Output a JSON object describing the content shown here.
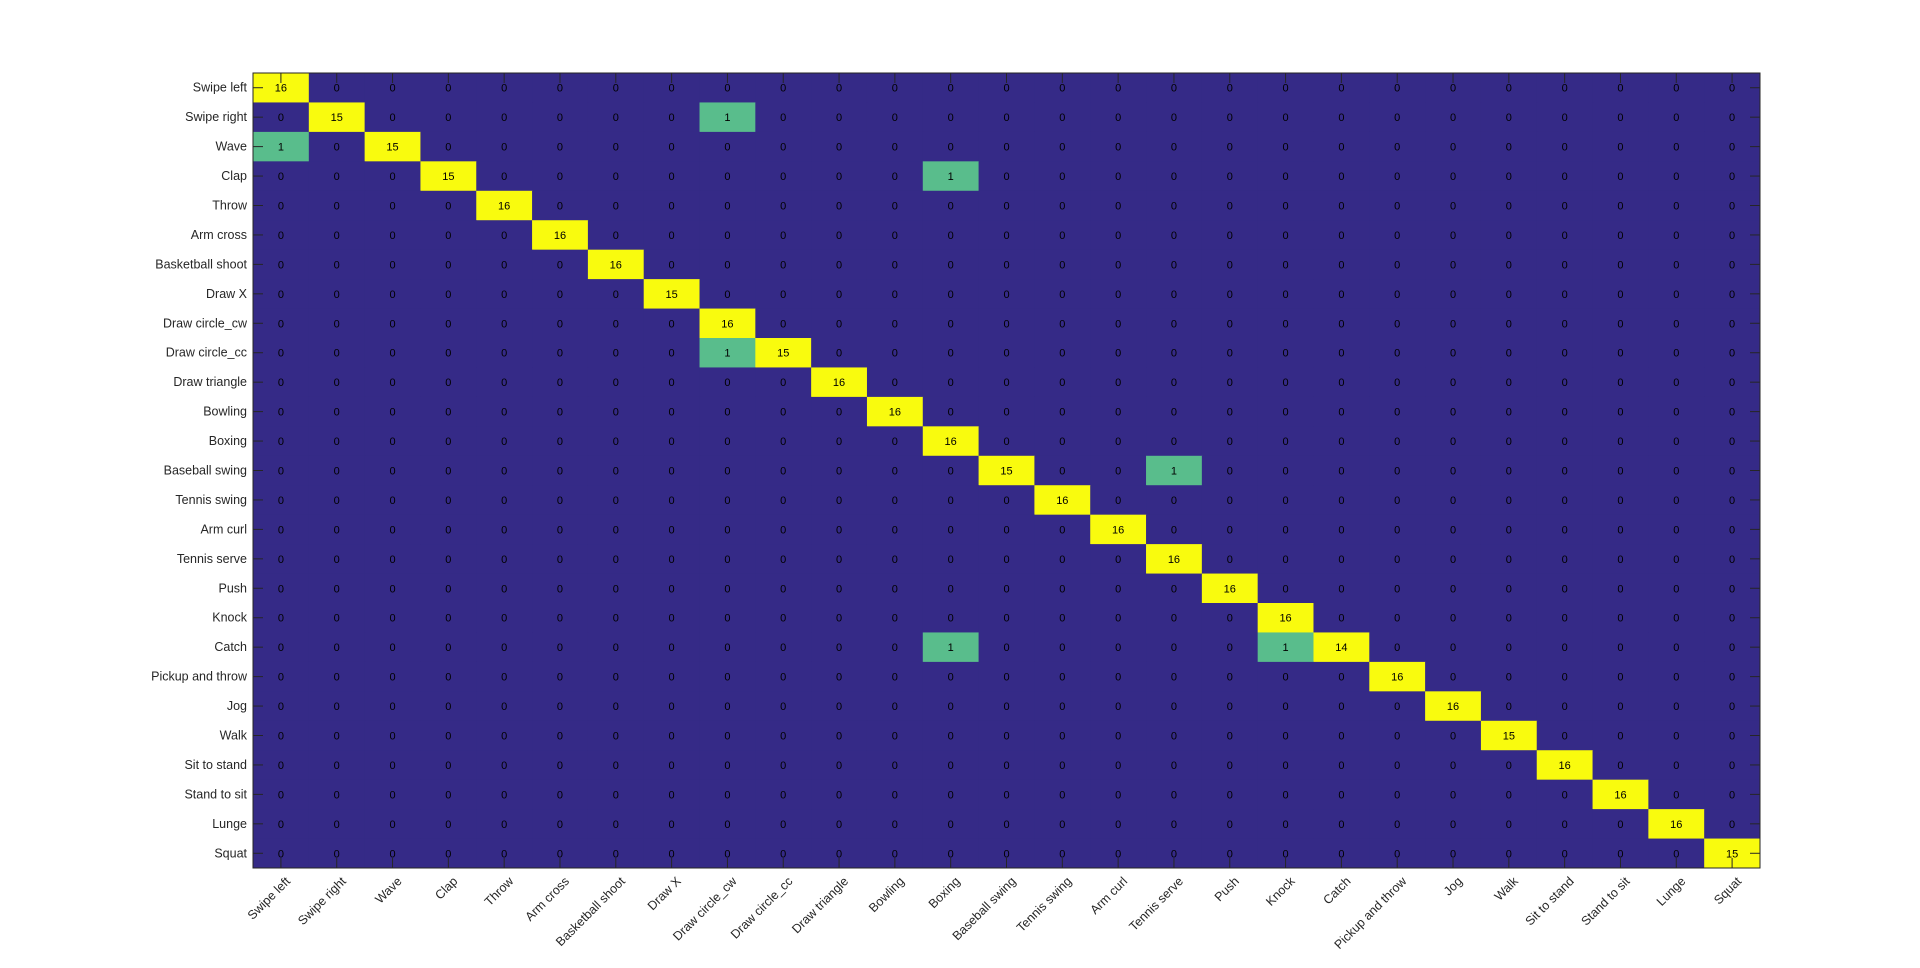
{
  "chart_data": {
    "type": "heatmap",
    "title": "",
    "xlabel": "",
    "ylabel": "",
    "row_labels": [
      "Swipe left",
      "Swipe right",
      "Wave",
      "Clap",
      "Throw",
      "Arm cross",
      "Basketball shoot",
      "Draw X",
      "Draw circle_cw",
      "Draw circle_cc",
      "Draw triangle",
      "Bowling",
      "Boxing",
      "Baseball swing",
      "Tennis swing",
      "Arm curl",
      "Tennis serve",
      "Push",
      "Knock",
      "Catch",
      "Pickup and throw",
      "Jog",
      "Walk",
      "Sit to stand",
      "Stand to sit",
      "Lunge",
      "Squat"
    ],
    "col_labels": [
      "Swipe left",
      "Swipe right",
      "Wave",
      "Clap",
      "Throw",
      "Arm cross",
      "Basketball shoot",
      "Draw X",
      "Draw circle_cw",
      "Draw circle_cc",
      "Draw triangle",
      "Bowling",
      "Boxing",
      "Baseball swing",
      "Tennis swing",
      "Arm curl",
      "Tennis serve",
      "Push",
      "Knock",
      "Catch",
      "Pickup and throw",
      "Jog",
      "Walk",
      "Sit to stand",
      "Stand to sit",
      "Lunge",
      "Squat"
    ],
    "diagonal": [
      16,
      15,
      15,
      15,
      16,
      16,
      16,
      15,
      16,
      15,
      16,
      16,
      16,
      15,
      16,
      16,
      16,
      16,
      16,
      14,
      16,
      16,
      15,
      16,
      16,
      16,
      15
    ],
    "off_diagonal": [
      {
        "row": 1,
        "col": 8,
        "value": 1
      },
      {
        "row": 2,
        "col": 0,
        "value": 1
      },
      {
        "row": 3,
        "col": 12,
        "value": 1
      },
      {
        "row": 9,
        "col": 8,
        "value": 1
      },
      {
        "row": 13,
        "col": 16,
        "value": 1
      },
      {
        "row": 19,
        "col": 12,
        "value": 1
      },
      {
        "row": 19,
        "col": 18,
        "value": 1
      }
    ],
    "color_scale": {
      "zero": "#352a87",
      "one": "#59bd8c",
      "high": "#f9fb0e",
      "high_threshold": 14
    },
    "text_color": "#000000",
    "grid": false,
    "legend": "none"
  }
}
